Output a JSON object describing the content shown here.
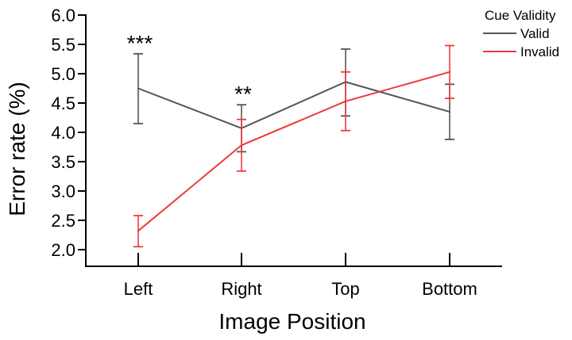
{
  "chart_data": {
    "type": "line",
    "title": "",
    "xlabel": "Image Position",
    "ylabel": "Error rate (%)",
    "categories": [
      "Left",
      "Right",
      "Top",
      "Bottom"
    ],
    "ylim": [
      2.0,
      6.0
    ],
    "yticks": [
      "2.0",
      "2.5",
      "3.0",
      "3.5",
      "4.0",
      "4.5",
      "5.0",
      "5.5",
      "6.0"
    ],
    "legend": {
      "title": "Cue Validity",
      "placement": "top-right"
    },
    "series": [
      {
        "name": "Valid",
        "color": "#555555",
        "values": [
          4.75,
          4.07,
          4.86,
          4.35
        ],
        "err_high": [
          5.34,
          4.47,
          5.42,
          4.82
        ],
        "err_low": [
          4.15,
          3.67,
          4.28,
          3.88
        ]
      },
      {
        "name": "Invalid",
        "color": "#ee3a3a",
        "values": [
          2.32,
          3.78,
          4.53,
          5.03
        ],
        "err_high": [
          2.58,
          4.22,
          5.03,
          5.48
        ],
        "err_low": [
          2.05,
          3.34,
          4.03,
          4.58
        ]
      }
    ],
    "annotations": [
      {
        "category": "Left",
        "text": "***"
      },
      {
        "category": "Right",
        "text": "**"
      }
    ]
  }
}
